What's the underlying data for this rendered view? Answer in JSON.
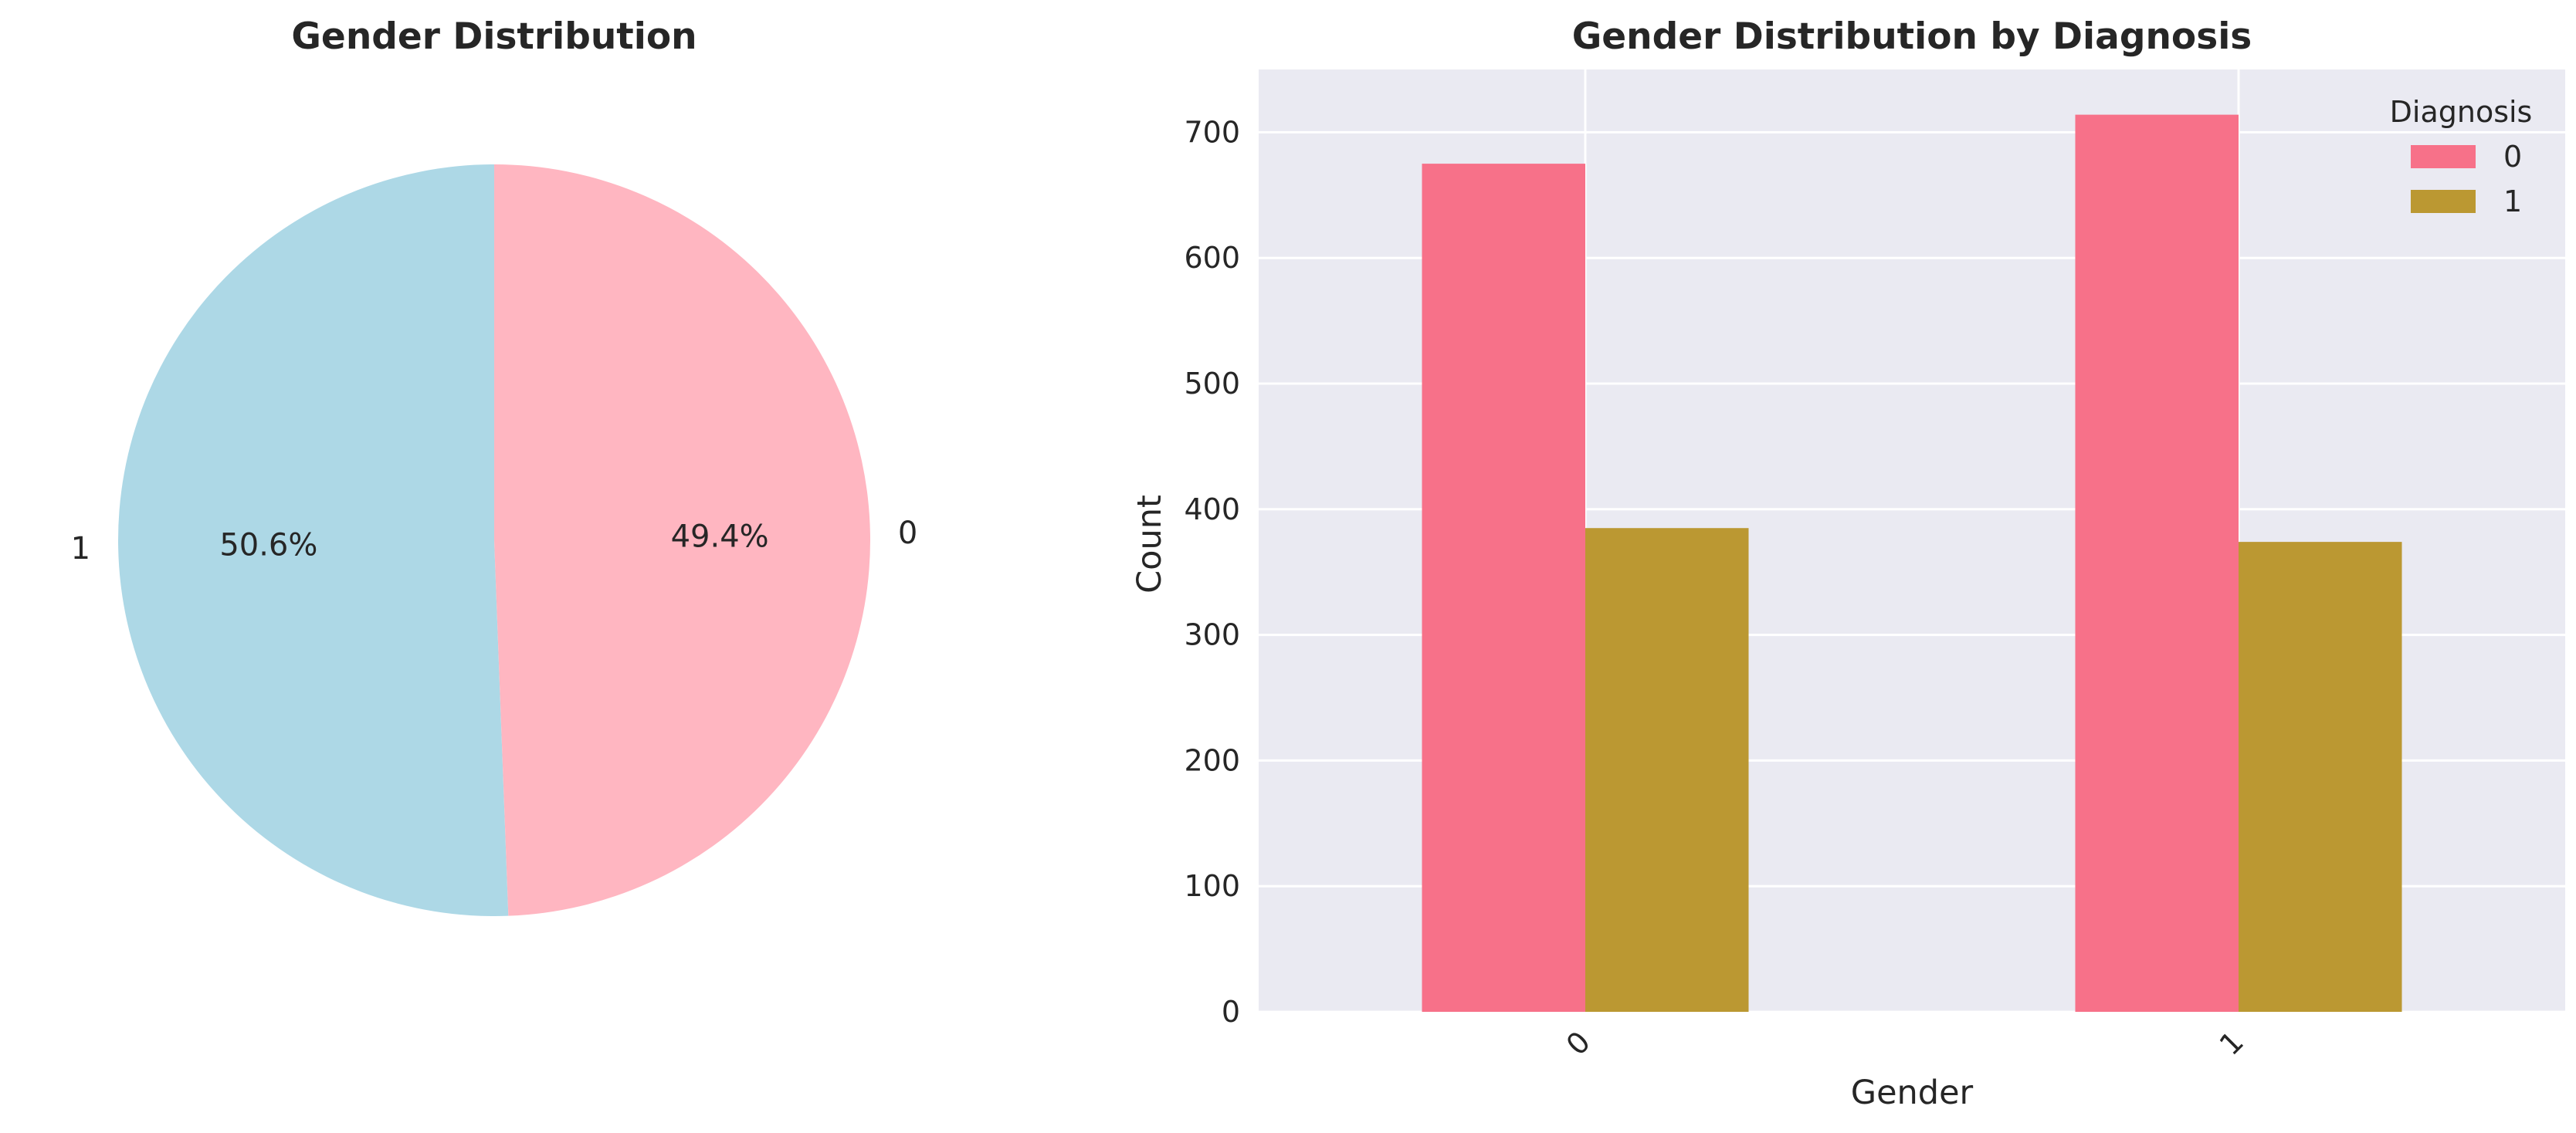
{
  "chart_data": [
    {
      "type": "pie",
      "title": "Gender Distribution",
      "labels": [
        "1",
        "0"
      ],
      "values": [
        50.6,
        49.4
      ],
      "autopct": [
        "50.6%",
        "49.4%"
      ],
      "colors": [
        "#add8e6",
        "#ffb6c1"
      ]
    },
    {
      "type": "bar",
      "title": "Gender Distribution by Diagnosis",
      "xlabel": "Gender",
      "ylabel": "Count",
      "categories": [
        "0",
        "1"
      ],
      "series": [
        {
          "name": "0",
          "values": [
            675,
            714
          ],
          "color": "#f77189"
        },
        {
          "name": "1",
          "values": [
            385,
            374
          ],
          "color": "#bb9832"
        }
      ],
      "ylim": [
        0,
        750
      ],
      "yticks": [
        0,
        100,
        200,
        300,
        400,
        500,
        600,
        700
      ],
      "legend": {
        "title": "Diagnosis",
        "placement": "top-right"
      },
      "grid": true,
      "background": "#eaeaf2"
    }
  ]
}
